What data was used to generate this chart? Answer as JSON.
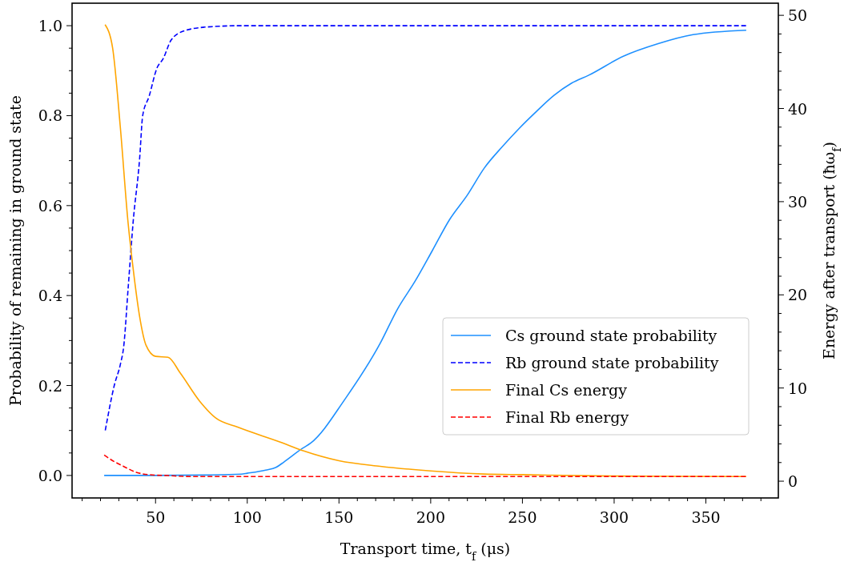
{
  "chart_data": {
    "type": "line",
    "xlabel": "Transport time, t$_{f}$ (μs)",
    "ylabel": "Probability of remaining in ground state",
    "y2label": "Energy after transport (ħω$_{f}$)",
    "xlim": [
      4.5,
      389.5
    ],
    "xticks": [
      {
        "value": 10,
        "label": null
      },
      {
        "value": 20,
        "label": null
      },
      {
        "value": 30,
        "label": null
      },
      {
        "value": 40,
        "label": null
      },
      50,
      {
        "value": 60,
        "label": null
      },
      {
        "value": 70,
        "label": null
      },
      {
        "value": 80,
        "label": null
      },
      {
        "value": 90,
        "label": null
      },
      100,
      {
        "value": 110,
        "label": null
      },
      {
        "value": 120,
        "label": null
      },
      {
        "value": 130,
        "label": null
      },
      {
        "value": 140,
        "label": null
      },
      150,
      {
        "value": 160,
        "label": null
      },
      {
        "value": 170,
        "label": null
      },
      {
        "value": 180,
        "label": null
      },
      {
        "value": 190,
        "label": null
      },
      200,
      {
        "value": 210,
        "label": null
      },
      {
        "value": 220,
        "label": null
      },
      {
        "value": 230,
        "label": null
      },
      {
        "value": 240,
        "label": null
      },
      250,
      {
        "value": 260,
        "label": null
      },
      {
        "value": 270,
        "label": null
      },
      {
        "value": 280,
        "label": null
      },
      {
        "value": 290,
        "label": null
      },
      300,
      {
        "value": 310,
        "label": null
      },
      {
        "value": 320,
        "label": null
      },
      {
        "value": 330,
        "label": null
      },
      {
        "value": 340,
        "label": null
      },
      350,
      {
        "value": 360,
        "label": null
      },
      {
        "value": 370,
        "label": null
      },
      {
        "value": 380,
        "label": null
      }
    ],
    "ylim": [
      -0.05,
      1.05
    ],
    "yticks": [
      {
        "value": 0.0,
        "label": "0.0"
      },
      {
        "value": 0.05,
        "label": null
      },
      {
        "value": 0.1,
        "label": null
      },
      {
        "value": 0.15,
        "label": null
      },
      {
        "value": 0.2,
        "label": "0.2"
      },
      {
        "value": 0.25,
        "label": null
      },
      {
        "value": 0.3,
        "label": null
      },
      {
        "value": 0.35,
        "label": null
      },
      {
        "value": 0.4,
        "label": "0.4"
      },
      {
        "value": 0.45,
        "label": null
      },
      {
        "value": 0.5,
        "label": null
      },
      {
        "value": 0.55,
        "label": null
      },
      {
        "value": 0.6,
        "label": "0.6"
      },
      {
        "value": 0.65,
        "label": null
      },
      {
        "value": 0.7,
        "label": null
      },
      {
        "value": 0.75,
        "label": null
      },
      {
        "value": 0.8,
        "label": "0.8"
      },
      {
        "value": 0.85,
        "label": null
      },
      {
        "value": 0.9,
        "label": null
      },
      {
        "value": 0.95,
        "label": null
      },
      {
        "value": 1.0,
        "label": "1.0"
      }
    ],
    "y2lim": [
      -1.8,
      51.3
    ],
    "y2ticks": [
      0,
      {
        "value": 2,
        "label": null
      },
      {
        "value": 4,
        "label": null
      },
      {
        "value": 6,
        "label": null
      },
      {
        "value": 8,
        "label": null
      },
      10,
      {
        "value": 12,
        "label": null
      },
      {
        "value": 14,
        "label": null
      },
      {
        "value": 16,
        "label": null
      },
      {
        "value": 18,
        "label": null
      },
      20,
      {
        "value": 22,
        "label": null
      },
      {
        "value": 24,
        "label": null
      },
      {
        "value": 26,
        "label": null
      },
      {
        "value": 28,
        "label": null
      },
      30,
      {
        "value": 32,
        "label": null
      },
      {
        "value": 34,
        "label": null
      },
      {
        "value": 36,
        "label": null
      },
      {
        "value": 38,
        "label": null
      },
      40,
      {
        "value": 42,
        "label": null
      },
      {
        "value": 44,
        "label": null
      },
      {
        "value": 46,
        "label": null
      },
      {
        "value": 48,
        "label": null
      },
      50
    ],
    "legend": "bottom right",
    "series": [
      {
        "name": "Cs ground state probability",
        "color": "#1e90ff",
        "line_style": "solid",
        "x": [
          22,
          50,
          80,
          96.7,
          100,
          110,
          115.7,
          120,
          130,
          134.6,
          153.5,
          172.5,
          181.9,
          191.5,
          200.9,
          210.3,
          219.9,
          229.3,
          238.8,
          248.3,
          257.8,
          267.2,
          276.7,
          286.2,
          305,
          324,
          343,
          372
        ],
        "values": [
          0,
          0,
          0.001,
          0.003,
          0.005,
          0.012,
          0.018,
          0.03,
          0.06,
          0.072,
          0.171,
          0.294,
          0.37,
          0.432,
          0.5,
          0.569,
          0.623,
          0.684,
          0.73,
          0.772,
          0.81,
          0.845,
          0.872,
          0.89,
          0.932,
          0.96,
          0.98,
          0.99
        ]
      },
      {
        "name": "Rb ground state probability",
        "color": "#0000ff",
        "line_style": "dashed",
        "x": [
          22.6,
          27.5,
          31,
          32.6,
          35.2,
          37.8,
          41.3,
          43,
          46.5,
          50.7,
          54.2,
          58.5,
          65.3,
          77.5,
          97,
          150,
          250,
          372
        ],
        "values": [
          0.1,
          0.2,
          0.25,
          0.285,
          0.424,
          0.564,
          0.703,
          0.8,
          0.843,
          0.905,
          0.927,
          0.968,
          0.988,
          0.997,
          1.0,
          1.0,
          1.0,
          1.0
        ]
      },
      {
        "name": "Final Cs energy",
        "color": "#ffa500",
        "line_style": "solid",
        "axis": "y2",
        "x": [
          22.5,
          26.6,
          30.8,
          35,
          37.8,
          41.3,
          44.8,
          50,
          56.8,
          63.5,
          74,
          82.7,
          94.8,
          118,
          130.8,
          150,
          172.5,
          200,
          229,
          250,
          300,
          372
        ],
        "values": [
          49,
          46.5,
          38,
          27.8,
          22.8,
          17.7,
          14.6,
          13.4,
          13.3,
          11.6,
          8.6,
          6.8,
          5.8,
          4.2,
          3.25,
          2.2,
          1.6,
          1.1,
          0.77,
          0.7,
          0.55,
          0.5
        ]
      },
      {
        "name": "Final Rb energy",
        "color": "#ff0000",
        "line_style": "dashed",
        "axis": "y2",
        "x": [
          22,
          27.5,
          32.5,
          39.5,
          46.5,
          56.8,
          70,
          100,
          200,
          372
        ],
        "values": [
          2.8,
          2.1,
          1.6,
          0.95,
          0.7,
          0.6,
          0.5,
          0.5,
          0.5,
          0.5
        ]
      }
    ]
  }
}
